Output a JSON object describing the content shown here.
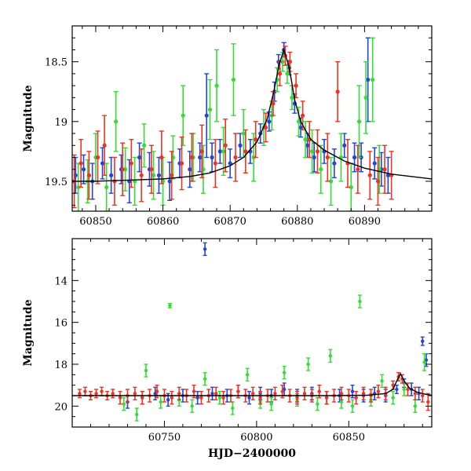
{
  "chart_data": [
    {
      "type": "scatter",
      "panel": "top",
      "xlabel": "",
      "ylabel": "Magnitude",
      "xlim": [
        60846.5,
        60900
      ],
      "ylim": [
        19.75,
        18.2
      ],
      "y_inverted": true,
      "xticks": [
        60850,
        60860,
        60870,
        60880,
        60890
      ],
      "xtick_labels": [
        "60850",
        "60860",
        "60870",
        "60880",
        "60890"
      ],
      "yticks": [
        18.5,
        19,
        19.5
      ],
      "ytick_labels": [
        "18.5",
        "19",
        "19.5"
      ],
      "grid": false,
      "legend": "none",
      "series": [
        {
          "color": "#2244dd",
          "x": [
            60847.0,
            60848.2,
            60849.5,
            60851.0,
            60852.3,
            60853.8,
            60855.0,
            60856.5,
            60858.0,
            60859.4,
            60861.0,
            60862.5,
            60864.0,
            60865.5,
            60866.5,
            60867.3,
            60868.5,
            60870.0,
            60871.5,
            60873.0,
            60874.5,
            60875.8,
            60876.6,
            60877.2,
            60878.0,
            60878.8,
            60879.6,
            60880.5,
            60881.5,
            60882.5,
            60884.0,
            60885.5,
            60887.0,
            60888.5,
            60889.5,
            60890.5,
            60891.5,
            60892.5,
            60893.5
          ],
          "y": [
            19.45,
            19.4,
            19.5,
            19.35,
            19.45,
            19.4,
            19.5,
            19.3,
            19.4,
            19.45,
            19.5,
            19.35,
            19.4,
            19.3,
            18.95,
            19.3,
            19.25,
            19.35,
            19.2,
            19.25,
            19.1,
            19.0,
            18.75,
            18.5,
            18.4,
            18.55,
            18.85,
            19.05,
            19.2,
            19.3,
            19.25,
            19.35,
            19.2,
            19.3,
            19.3,
            18.65,
            19.35,
            19.4,
            19.45
          ],
          "err": [
            0.15,
            0.12,
            0.15,
            0.13,
            0.15,
            0.12,
            0.18,
            0.12,
            0.14,
            0.15,
            0.16,
            0.12,
            0.15,
            0.12,
            0.35,
            0.12,
            0.1,
            0.12,
            0.1,
            0.1,
            0.08,
            0.08,
            0.08,
            0.06,
            0.06,
            0.06,
            0.08,
            0.08,
            0.1,
            0.12,
            0.1,
            0.12,
            0.1,
            0.12,
            0.12,
            0.35,
            0.13,
            0.14,
            0.15
          ]
        },
        {
          "color": "#33dd33",
          "x": [
            60847.4,
            60848.8,
            60850.0,
            60851.6,
            60853.0,
            60854.4,
            60855.8,
            60857.2,
            60858.6,
            60860.0,
            60861.5,
            60863.0,
            60864.5,
            60866.0,
            60867.0,
            60868.0,
            60869.0,
            60870.5,
            60872.0,
            60873.5,
            60875.0,
            60876.2,
            60877.0,
            60877.8,
            60878.5,
            60879.2,
            60880.2,
            60881.2,
            60882.2,
            60883.5,
            60885.0,
            60886.5,
            60888.0,
            60889.2,
            60890.2,
            60891.2,
            60892.2
          ],
          "y": [
            19.55,
            19.5,
            19.3,
            19.55,
            19.0,
            19.4,
            19.5,
            19.2,
            19.45,
            19.5,
            19.3,
            18.95,
            19.3,
            19.4,
            18.9,
            18.7,
            19.25,
            18.65,
            19.1,
            19.3,
            19.05,
            18.95,
            18.65,
            18.5,
            18.6,
            18.8,
            19.0,
            19.15,
            19.25,
            19.4,
            19.5,
            19.3,
            19.55,
            19.0,
            18.8,
            18.65,
            19.4
          ],
          "err": [
            0.2,
            0.18,
            0.2,
            0.2,
            0.25,
            0.18,
            0.2,
            0.18,
            0.2,
            0.2,
            0.18,
            0.25,
            0.2,
            0.2,
            0.25,
            0.3,
            0.2,
            0.3,
            0.2,
            0.2,
            0.15,
            0.12,
            0.1,
            0.08,
            0.08,
            0.1,
            0.12,
            0.15,
            0.18,
            0.2,
            0.2,
            0.2,
            0.2,
            0.3,
            0.3,
            0.35,
            0.2
          ]
        },
        {
          "color": "#ee3322",
          "x": [
            60846.8,
            60847.8,
            60849.0,
            60850.3,
            60851.3,
            60852.8,
            60854.0,
            60855.3,
            60856.8,
            60858.3,
            60859.8,
            60861.3,
            60862.8,
            60864.3,
            60865.8,
            60867.8,
            60869.3,
            60870.8,
            60872.3,
            60873.8,
            60875.3,
            60876.4,
            60877.4,
            60878.2,
            60878.9,
            60879.8,
            60880.8,
            60881.8,
            60883.0,
            60884.5,
            60886.0,
            60887.5,
            60889.0,
            60890.8,
            60892.0,
            60893.0,
            60894.0
          ],
          "y": [
            19.5,
            19.35,
            19.45,
            19.3,
            19.2,
            19.5,
            19.4,
            19.35,
            19.45,
            19.4,
            19.3,
            19.45,
            19.35,
            19.3,
            19.25,
            19.35,
            19.2,
            19.3,
            19.25,
            19.15,
            19.05,
            18.85,
            18.6,
            18.45,
            18.5,
            18.7,
            18.95,
            19.15,
            19.25,
            19.3,
            18.75,
            19.35,
            19.4,
            19.45,
            19.5,
            19.4,
            19.45
          ],
          "err": [
            0.22,
            0.2,
            0.2,
            0.22,
            0.25,
            0.2,
            0.22,
            0.2,
            0.22,
            0.2,
            0.22,
            0.2,
            0.22,
            0.2,
            0.22,
            0.2,
            0.22,
            0.2,
            0.18,
            0.15,
            0.12,
            0.1,
            0.1,
            0.08,
            0.08,
            0.1,
            0.12,
            0.15,
            0.18,
            0.2,
            0.25,
            0.2,
            0.2,
            0.2,
            0.2,
            0.2,
            0.2
          ]
        }
      ],
      "model_curve": {
        "color": "#000000",
        "x": [
          60846.5,
          60850,
          60855,
          60860,
          60864,
          60867,
          60870,
          60872,
          60874,
          60875.5,
          60876.5,
          60877.3,
          60878.0,
          60878.8,
          60879.6,
          60880.5,
          60882,
          60884,
          60887,
          60890,
          60894,
          60900
        ],
        "y": [
          19.5,
          19.5,
          19.49,
          19.48,
          19.46,
          19.43,
          19.37,
          19.3,
          19.17,
          18.98,
          18.75,
          18.52,
          18.4,
          18.55,
          18.82,
          19.0,
          19.15,
          19.24,
          19.33,
          19.39,
          19.44,
          19.48
        ]
      }
    },
    {
      "type": "scatter",
      "panel": "bottom",
      "xlabel": "HJD−2400000",
      "ylabel": "Magnitude",
      "xlim": [
        60700,
        60895
      ],
      "ylim": [
        21,
        12
      ],
      "y_inverted": true,
      "xticks": [
        60750,
        60800,
        60850
      ],
      "xtick_labels": [
        "60750",
        "60800",
        "60850"
      ],
      "yticks": [
        14,
        16,
        18,
        20
      ],
      "ytick_labels": [
        "14",
        "16",
        "18",
        "20"
      ],
      "grid": false,
      "legend": "none",
      "series": [
        {
          "color": "#2244dd",
          "x": [
            60730,
            60738,
            60745,
            60752,
            60760,
            60768,
            60772,
            60776,
            60784,
            60790,
            60796,
            60802,
            60808,
            60815,
            60822,
            60830,
            60838,
            60845,
            60852,
            60858,
            60864,
            60870,
            60876,
            60880,
            60884,
            60888,
            60890,
            60892
          ],
          "y": [
            19.8,
            19.6,
            19.4,
            19.7,
            19.5,
            19.6,
            12.5,
            19.4,
            19.5,
            19.3,
            19.6,
            19.4,
            19.5,
            19.2,
            19.5,
            19.4,
            19.6,
            19.5,
            19.3,
            19.5,
            19.4,
            19.5,
            19.2,
            18.9,
            19.2,
            19.4,
            16.9,
            17.8
          ],
          "err": [
            0.3,
            0.3,
            0.3,
            0.3,
            0.3,
            0.3,
            0.3,
            0.3,
            0.3,
            0.3,
            0.3,
            0.3,
            0.3,
            0.3,
            0.3,
            0.3,
            0.3,
            0.3,
            0.3,
            0.3,
            0.3,
            0.3,
            0.2,
            0.2,
            0.3,
            0.3,
            0.2,
            0.3
          ]
        },
        {
          "color": "#33dd33",
          "x": [
            60728,
            60735,
            60740,
            60748,
            60753,
            60758,
            60765,
            60772,
            60780,
            60787,
            60795,
            60802,
            60808,
            60815,
            60822,
            60828,
            60833,
            60840,
            60846,
            60852,
            60856,
            60862,
            60868,
            60874,
            60880,
            60886,
            60891
          ],
          "y": [
            19.9,
            20.4,
            18.3,
            19.8,
            15.2,
            19.7,
            20.0,
            18.7,
            19.6,
            20.1,
            18.5,
            19.8,
            19.9,
            18.4,
            19.7,
            18.0,
            19.9,
            17.6,
            19.8,
            20.0,
            15.0,
            19.7,
            18.8,
            19.6,
            19.2,
            20.0,
            17.9
          ],
          "err": [
            0.3,
            0.3,
            0.3,
            0.3,
            0.1,
            0.3,
            0.3,
            0.3,
            0.3,
            0.3,
            0.3,
            0.3,
            0.3,
            0.3,
            0.3,
            0.3,
            0.3,
            0.3,
            0.3,
            0.3,
            0.3,
            0.3,
            0.3,
            0.3,
            0.3,
            0.3,
            0.4
          ]
        },
        {
          "color": "#ee3322",
          "x": [
            60704,
            60707,
            60710,
            60713,
            60716,
            60719,
            60722,
            60726,
            60730,
            60734,
            60738,
            60742,
            60746,
            60750,
            60754,
            60758,
            60762,
            60766,
            60770,
            60774,
            60778,
            60782,
            60786,
            60790,
            60794,
            60798,
            60802,
            60806,
            60810,
            60814,
            60818,
            60822,
            60826,
            60830,
            60834,
            60838,
            60842,
            60846,
            60850,
            60854,
            60858,
            60862,
            60866,
            60870,
            60874,
            60877,
            60879,
            60882,
            60886,
            60890,
            60893
          ],
          "y": [
            19.4,
            19.3,
            19.5,
            19.4,
            19.3,
            19.5,
            19.4,
            19.6,
            19.5,
            19.4,
            19.6,
            19.5,
            19.3,
            19.5,
            19.6,
            19.4,
            19.5,
            19.3,
            19.6,
            19.5,
            19.4,
            19.6,
            19.5,
            19.3,
            19.5,
            19.4,
            19.6,
            19.5,
            19.4,
            19.3,
            19.5,
            19.6,
            19.4,
            19.5,
            19.3,
            19.6,
            19.5,
            19.4,
            19.5,
            19.6,
            19.4,
            19.5,
            19.3,
            19.4,
            19.0,
            18.6,
            18.7,
            19.2,
            19.4,
            19.5,
            19.8
          ],
          "err": [
            0.2,
            0.2,
            0.2,
            0.2,
            0.2,
            0.2,
            0.2,
            0.3,
            0.3,
            0.3,
            0.3,
            0.3,
            0.3,
            0.3,
            0.3,
            0.3,
            0.3,
            0.3,
            0.3,
            0.3,
            0.3,
            0.3,
            0.3,
            0.3,
            0.3,
            0.3,
            0.3,
            0.3,
            0.3,
            0.3,
            0.3,
            0.3,
            0.3,
            0.3,
            0.3,
            0.3,
            0.3,
            0.3,
            0.3,
            0.3,
            0.3,
            0.3,
            0.3,
            0.3,
            0.2,
            0.2,
            0.2,
            0.3,
            0.3,
            0.3,
            0.4
          ]
        }
      ],
      "model_curve": {
        "color": "#000000",
        "x": [
          60700,
          60750,
          60800,
          60840,
          60860,
          60870,
          60874,
          60876,
          60878,
          60880,
          60883,
          60887,
          60892,
          60895
        ],
        "y": [
          19.5,
          19.5,
          19.5,
          19.5,
          19.48,
          19.4,
          19.2,
          18.8,
          18.45,
          18.8,
          19.15,
          19.33,
          19.44,
          19.48
        ]
      }
    }
  ]
}
